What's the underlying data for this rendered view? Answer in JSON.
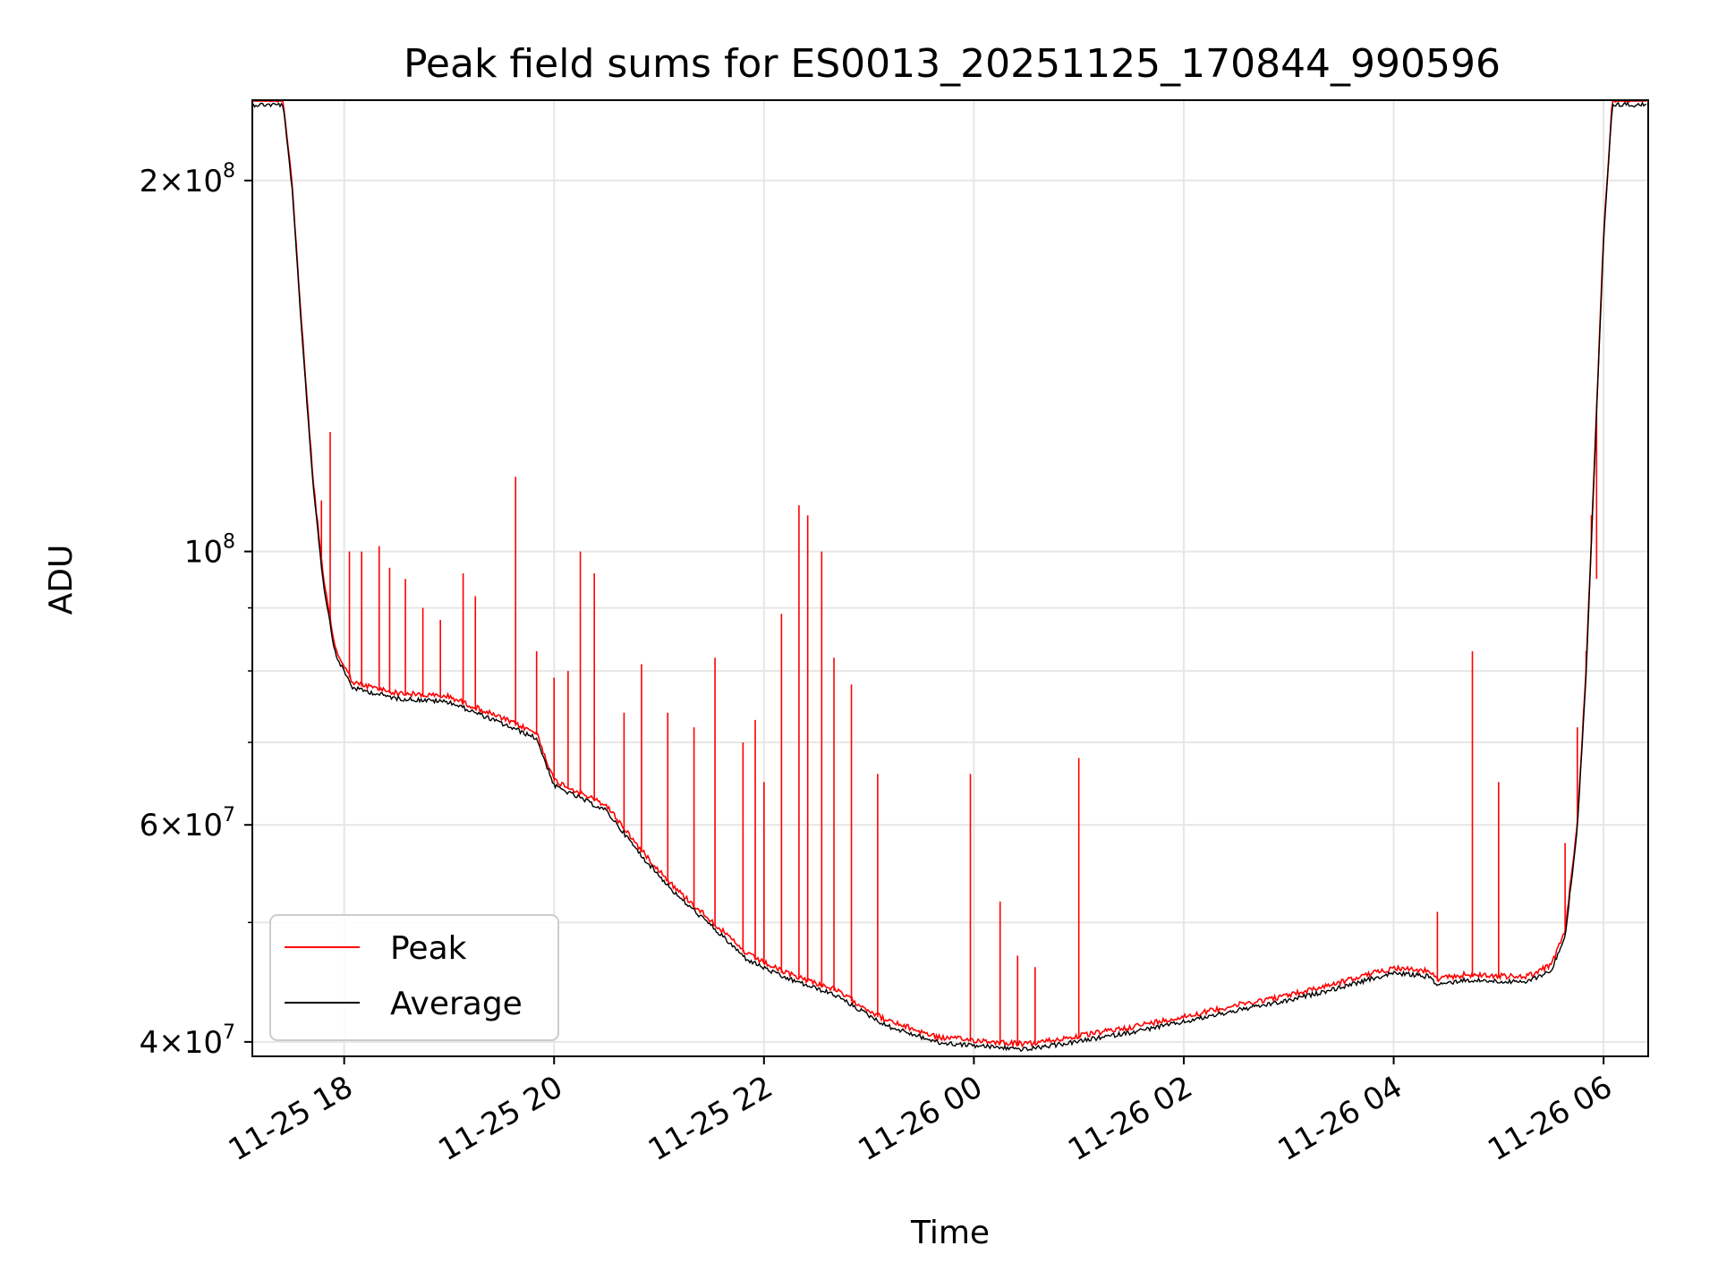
{
  "chart_data": {
    "type": "line",
    "title": "Peak field sums for ES0013_20251125_170844_990596",
    "xlabel": "Time",
    "ylabel": "ADU",
    "y_scale": "log",
    "xlim": [
      "2025-11-25 17:08",
      "2025-11-26 06:25"
    ],
    "ylim": [
      39000000,
      232000000
    ],
    "grid": true,
    "legend": "lower-left",
    "x_ticks": [
      {
        "value": "2025-11-25 18:00",
        "label": "11-25 18"
      },
      {
        "value": "2025-11-25 20:00",
        "label": "11-25 20"
      },
      {
        "value": "2025-11-25 22:00",
        "label": "11-25 22"
      },
      {
        "value": "2025-11-26 00:00",
        "label": "11-26 00"
      },
      {
        "value": "2025-11-26 02:00",
        "label": "11-26 02"
      },
      {
        "value": "2025-11-26 04:00",
        "label": "11-26 04"
      },
      {
        "value": "2025-11-26 06:00",
        "label": "11-26 06"
      }
    ],
    "y_ticks": [
      {
        "value": 200000000,
        "mantissa": "2",
        "base": "10",
        "exp": "8"
      },
      {
        "value": 100000000,
        "mantissa": "",
        "base": "10",
        "exp": "8"
      },
      {
        "value": 60000000,
        "mantissa": "6",
        "base": "10",
        "exp": "7"
      },
      {
        "value": 40000000,
        "mantissa": "4",
        "base": "10",
        "exp": "7"
      }
    ],
    "y_minor_ticks": [
      50000000,
      70000000,
      80000000,
      90000000,
      300000000
    ],
    "series": [
      {
        "name": "Peak",
        "color": "#ff0000",
        "baseline": [
          [
            "2025-11-25 17:08",
            232000000
          ],
          [
            "2025-11-25 17:25",
            232000000
          ],
          [
            "2025-11-25 17:30",
            200000000
          ],
          [
            "2025-11-25 17:36",
            150000000
          ],
          [
            "2025-11-25 17:42",
            115000000
          ],
          [
            "2025-11-25 17:48",
            95000000
          ],
          [
            "2025-11-25 17:55",
            83000000
          ],
          [
            "2025-11-25 18:05",
            78000000
          ],
          [
            "2025-11-25 18:30",
            76500000
          ],
          [
            "2025-11-25 19:00",
            76000000
          ],
          [
            "2025-11-25 19:30",
            73000000
          ],
          [
            "2025-11-25 19:50",
            71000000
          ],
          [
            "2025-11-25 20:00",
            65000000
          ],
          [
            "2025-11-25 20:30",
            62000000
          ],
          [
            "2025-11-25 20:50",
            57000000
          ],
          [
            "2025-11-25 21:10",
            53000000
          ],
          [
            "2025-11-25 21:30",
            50000000
          ],
          [
            "2025-11-25 21:50",
            47000000
          ],
          [
            "2025-11-25 22:10",
            45500000
          ],
          [
            "2025-11-25 22:40",
            44000000
          ],
          [
            "2025-11-25 23:10",
            41500000
          ],
          [
            "2025-11-25 23:40",
            40200000
          ],
          [
            "2025-11-26 00:00",
            40000000
          ],
          [
            "2025-11-26 00:30",
            39700000
          ],
          [
            "2025-11-26 01:00",
            40300000
          ],
          [
            "2025-11-26 01:30",
            41000000
          ],
          [
            "2025-11-26 02:00",
            41800000
          ],
          [
            "2025-11-26 02:30",
            42700000
          ],
          [
            "2025-11-26 03:00",
            43500000
          ],
          [
            "2025-11-26 03:30",
            44600000
          ],
          [
            "2025-11-26 04:00",
            45800000
          ],
          [
            "2025-11-26 04:20",
            45500000
          ],
          [
            "2025-11-26 04:25",
            44800000
          ],
          [
            "2025-11-26 04:40",
            45200000
          ],
          [
            "2025-11-26 05:00",
            45100000
          ],
          [
            "2025-11-26 05:15",
            45000000
          ],
          [
            "2025-11-26 05:30",
            46000000
          ],
          [
            "2025-11-26 05:38",
            49000000
          ],
          [
            "2025-11-26 05:45",
            60000000
          ],
          [
            "2025-11-26 05:50",
            80000000
          ],
          [
            "2025-11-26 05:55",
            120000000
          ],
          [
            "2025-11-26 06:00",
            180000000
          ],
          [
            "2025-11-26 06:05",
            232000000
          ],
          [
            "2025-11-26 06:25",
            232000000
          ]
        ],
        "spikes": [
          [
            "2025-11-25 17:52",
            125000000
          ],
          [
            "2025-11-25 17:47",
            110000000
          ],
          [
            "2025-11-25 18:03",
            100000000
          ],
          [
            "2025-11-25 18:10",
            100000000
          ],
          [
            "2025-11-25 18:20",
            101000000
          ],
          [
            "2025-11-25 18:26",
            97000000
          ],
          [
            "2025-11-25 18:35",
            95000000
          ],
          [
            "2025-11-25 18:45",
            90000000
          ],
          [
            "2025-11-25 18:55",
            88000000
          ],
          [
            "2025-11-25 19:08",
            96000000
          ],
          [
            "2025-11-25 19:15",
            92000000
          ],
          [
            "2025-11-25 19:38",
            115000000
          ],
          [
            "2025-11-25 19:50",
            83000000
          ],
          [
            "2025-11-25 20:00",
            79000000
          ],
          [
            "2025-11-25 20:08",
            80000000
          ],
          [
            "2025-11-25 20:15",
            100000000
          ],
          [
            "2025-11-25 20:23",
            96000000
          ],
          [
            "2025-11-25 20:40",
            74000000
          ],
          [
            "2025-11-25 20:50",
            81000000
          ],
          [
            "2025-11-25 21:05",
            74000000
          ],
          [
            "2025-11-25 21:20",
            72000000
          ],
          [
            "2025-11-25 21:32",
            82000000
          ],
          [
            "2025-11-25 21:48",
            70000000
          ],
          [
            "2025-11-25 22:00",
            65000000
          ],
          [
            "2025-11-25 22:20",
            109000000
          ],
          [
            "2025-11-25 22:25",
            107000000
          ],
          [
            "2025-11-25 22:33",
            100000000
          ],
          [
            "2025-11-25 22:40",
            82000000
          ],
          [
            "2025-11-25 22:50",
            78000000
          ],
          [
            "2025-11-25 23:05",
            66000000
          ],
          [
            "2025-11-25 22:10",
            89000000
          ],
          [
            "2025-11-25 21:55",
            73000000
          ],
          [
            "2025-11-25 23:58",
            66000000
          ],
          [
            "2025-11-26 00:15",
            52000000
          ],
          [
            "2025-11-26 00:25",
            47000000
          ],
          [
            "2025-11-26 00:35",
            46000000
          ],
          [
            "2025-11-26 01:00",
            68000000
          ],
          [
            "2025-11-26 04:25",
            51000000
          ],
          [
            "2025-11-26 04:45",
            83000000
          ],
          [
            "2025-11-26 05:00",
            65000000
          ],
          [
            "2025-11-26 05:38",
            58000000
          ],
          [
            "2025-11-26 05:45",
            72000000
          ],
          [
            "2025-11-26 05:50",
            83000000
          ],
          [
            "2025-11-26 05:53",
            107000000
          ],
          [
            "2025-11-26 05:56",
            95000000
          ]
        ]
      },
      {
        "name": "Average",
        "color": "#000000"
      }
    ]
  }
}
